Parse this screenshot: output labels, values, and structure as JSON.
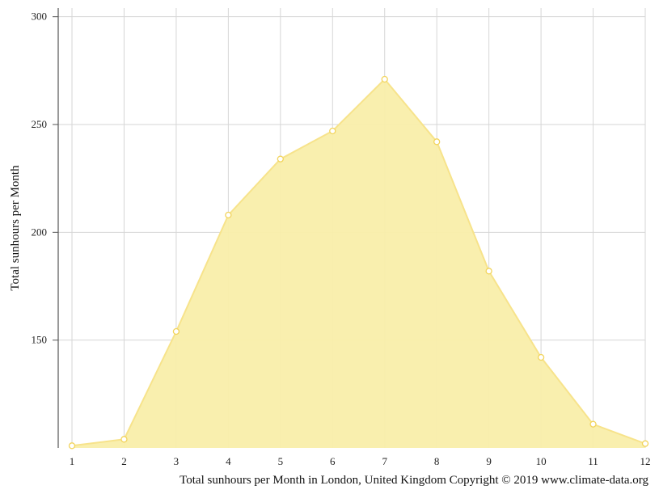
{
  "chart_data": {
    "type": "area",
    "x": [
      1,
      2,
      3,
      4,
      5,
      6,
      7,
      8,
      9,
      10,
      11,
      12
    ],
    "values": [
      101,
      104,
      154,
      208,
      234,
      247,
      271,
      242,
      182,
      142,
      111,
      102
    ],
    "ylabel": "Total sunhours per Month",
    "caption": "Total sunhours per Month in London, United Kingdom Copyright © 2019 www.climate-data.org",
    "yticks": [
      150,
      200,
      250,
      300
    ],
    "ylim": [
      100,
      304
    ],
    "xlim": [
      1,
      12
    ],
    "grid": true,
    "fill_color": "#f9eeaa",
    "line_color": "#f7e38b",
    "marker_color": "#f2d45c"
  }
}
